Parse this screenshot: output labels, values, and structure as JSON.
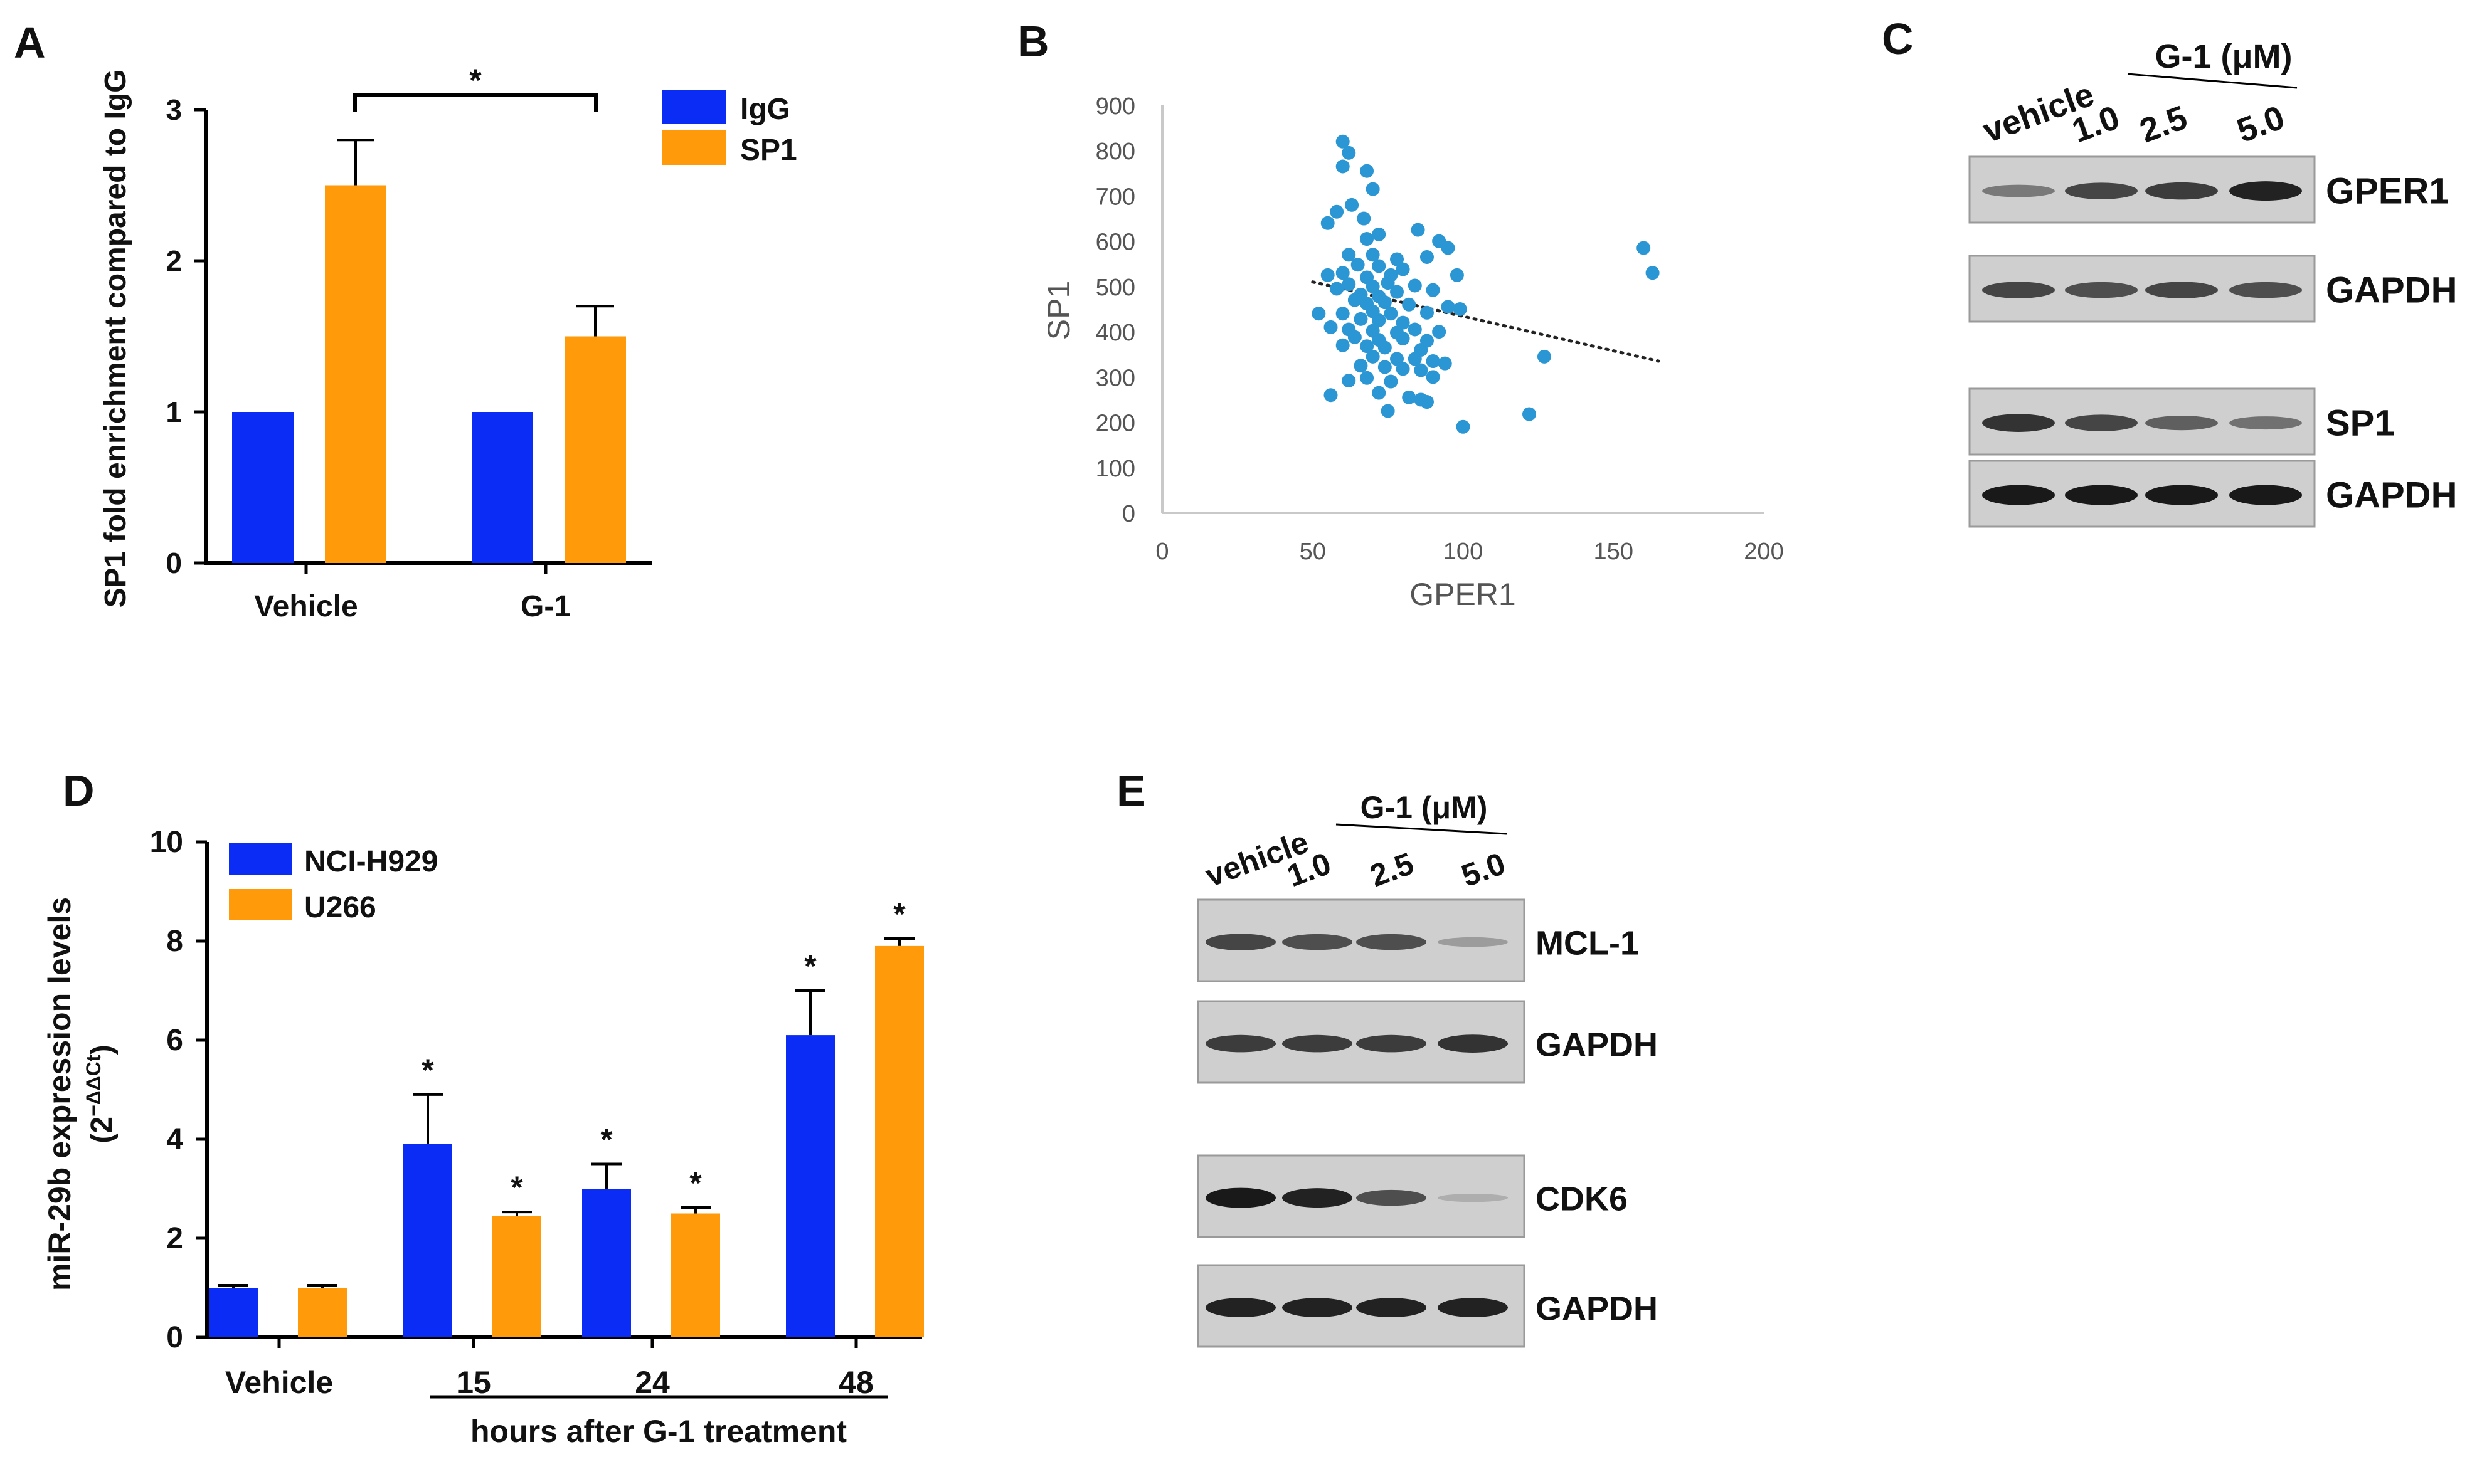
{
  "colors": {
    "blue": "#0a2cf4",
    "orange": "#ff9a0a",
    "scatter": "#2a96d4",
    "axis": "#000000",
    "scatter_axis": "#c9c9c9",
    "panel_labels": "#000000"
  },
  "panels": {
    "a": "A",
    "b": "B",
    "c": "C",
    "d": "D",
    "e": "E"
  },
  "chart_data": [
    {
      "panel": "A",
      "type": "bar",
      "categories": [
        "Vehicle",
        "G-1"
      ],
      "series": [
        {
          "name": "IgG",
          "values": [
            1,
            1
          ],
          "errors": [
            0,
            0
          ]
        },
        {
          "name": "SP1",
          "values": [
            2.5,
            1.5
          ],
          "errors": [
            0.3,
            0.2
          ]
        }
      ],
      "ylabel": "SP1 fold enrichment compared to IgG",
      "ylim": [
        0,
        3
      ],
      "yticks": [
        "0",
        "1",
        "2",
        "3"
      ],
      "significance": {
        "label": "*",
        "between": [
          "Vehicle SP1",
          "G-1 SP1"
        ]
      },
      "legend": "top-right"
    },
    {
      "panel": "B",
      "type": "scatter",
      "xlabel": "GPER1",
      "ylabel": "SP1",
      "xlim": [
        0,
        200
      ],
      "ylim": [
        0,
        900
      ],
      "xticks": [
        "0",
        "50",
        "100",
        "150",
        "200"
      ],
      "yticks": [
        "0",
        "100",
        "200",
        "300",
        "400",
        "500",
        "600",
        "700",
        "800",
        "900"
      ],
      "trendline": {
        "style": "dotted",
        "x": [
          50,
          165
        ],
        "y": [
          510,
          335
        ]
      },
      "points": [
        [
          60,
          820
        ],
        [
          62,
          795
        ],
        [
          60,
          765
        ],
        [
          68,
          755
        ],
        [
          70,
          715
        ],
        [
          58,
          665
        ],
        [
          63,
          680
        ],
        [
          67,
          650
        ],
        [
          55,
          640
        ],
        [
          72,
          615
        ],
        [
          68,
          605
        ],
        [
          85,
          625
        ],
        [
          92,
          600
        ],
        [
          95,
          585
        ],
        [
          62,
          570
        ],
        [
          70,
          570
        ],
        [
          78,
          560
        ],
        [
          88,
          565
        ],
        [
          65,
          548
        ],
        [
          72,
          545
        ],
        [
          80,
          538
        ],
        [
          55,
          525
        ],
        [
          60,
          530
        ],
        [
          68,
          520
        ],
        [
          76,
          525
        ],
        [
          98,
          525
        ],
        [
          62,
          505
        ],
        [
          70,
          500
        ],
        [
          75,
          508
        ],
        [
          84,
          502
        ],
        [
          58,
          495
        ],
        [
          66,
          482
        ],
        [
          72,
          478
        ],
        [
          78,
          488
        ],
        [
          90,
          492
        ],
        [
          64,
          470
        ],
        [
          68,
          462
        ],
        [
          74,
          465
        ],
        [
          82,
          460
        ],
        [
          95,
          455
        ],
        [
          99,
          450
        ],
        [
          52,
          440
        ],
        [
          60,
          440
        ],
        [
          70,
          445
        ],
        [
          76,
          440
        ],
        [
          88,
          442
        ],
        [
          66,
          428
        ],
        [
          72,
          425
        ],
        [
          80,
          420
        ],
        [
          56,
          410
        ],
        [
          62,
          405
        ],
        [
          70,
          402
        ],
        [
          78,
          398
        ],
        [
          84,
          405
        ],
        [
          92,
          400
        ],
        [
          64,
          388
        ],
        [
          72,
          382
        ],
        [
          80,
          385
        ],
        [
          88,
          380
        ],
        [
          60,
          370
        ],
        [
          68,
          368
        ],
        [
          74,
          365
        ],
        [
          86,
          360
        ],
        [
          70,
          345
        ],
        [
          78,
          340
        ],
        [
          84,
          340
        ],
        [
          90,
          335
        ],
        [
          94,
          330
        ],
        [
          66,
          325
        ],
        [
          74,
          322
        ],
        [
          80,
          318
        ],
        [
          86,
          315
        ],
        [
          90,
          300
        ],
        [
          68,
          298
        ],
        [
          62,
          292
        ],
        [
          76,
          290
        ],
        [
          56,
          260
        ],
        [
          72,
          265
        ],
        [
          82,
          255
        ],
        [
          86,
          250
        ],
        [
          88,
          245
        ],
        [
          75,
          225
        ],
        [
          100,
          190
        ],
        [
          122,
          218
        ],
        [
          127,
          345
        ],
        [
          160,
          585
        ],
        [
          163,
          530
        ]
      ]
    },
    {
      "panel": "C",
      "type": "western_blot",
      "header_group": "G-1 (μM)",
      "lane_labels": [
        "vehicle",
        "1.0",
        "2.5",
        "5.0"
      ],
      "blots": [
        {
          "label": "GPER1",
          "intensities": [
            0.45,
            0.75,
            0.8,
            0.95
          ]
        },
        {
          "label": "GAPDH",
          "intensities": [
            0.75,
            0.7,
            0.75,
            0.7
          ]
        },
        {
          "label": "SP1",
          "intensities": [
            0.85,
            0.75,
            0.6,
            0.5
          ]
        },
        {
          "label": "GAPDH",
          "intensities": [
            1.0,
            1.0,
            1.0,
            1.0
          ]
        }
      ]
    },
    {
      "panel": "D",
      "type": "bar",
      "categories": [
        "Vehicle",
        "15",
        "24",
        "48"
      ],
      "series": [
        {
          "name": "NCI-H929",
          "values": [
            1.0,
            3.9,
            3.0,
            6.1
          ],
          "errors": [
            0.05,
            1.0,
            0.5,
            0.9
          ]
        },
        {
          "name": "U266",
          "values": [
            1.0,
            2.45,
            2.5,
            7.9
          ],
          "errors": [
            0.05,
            0.08,
            0.12,
            0.15
          ]
        }
      ],
      "significance_marks": [
        {
          "category": "15",
          "series": "NCI-H929",
          "label": "*"
        },
        {
          "category": "15",
          "series": "U266",
          "label": "*"
        },
        {
          "category": "24",
          "series": "NCI-H929",
          "label": "*"
        },
        {
          "category": "24",
          "series": "U266",
          "label": "*"
        },
        {
          "category": "48",
          "series": "NCI-H929",
          "label": "*"
        },
        {
          "category": "48",
          "series": "U266",
          "label": "*"
        }
      ],
      "ylabel": "miR-29b expression levels",
      "ylabel_sub": "(2",
      "ylabel_exp": "−ΔΔCt",
      "ylabel_close": ")",
      "xgroup_label": "hours after G-1 treatment",
      "ylim": [
        0,
        10
      ],
      "yticks": [
        "0",
        "2",
        "4",
        "6",
        "8",
        "10"
      ],
      "legend": "top-left"
    },
    {
      "panel": "E",
      "type": "western_blot",
      "header_group": "G-1 (μM)",
      "lane_labels": [
        "vehicle",
        "1.0",
        "2.5",
        "5.0"
      ],
      "blots": [
        {
          "label": "MCL-1",
          "intensities": [
            0.75,
            0.7,
            0.7,
            0.25
          ]
        },
        {
          "label": "GAPDH",
          "intensities": [
            0.8,
            0.8,
            0.8,
            0.85
          ]
        },
        {
          "label": "CDK6",
          "intensities": [
            1.0,
            0.95,
            0.7,
            0.15
          ]
        },
        {
          "label": "GAPDH",
          "intensities": [
            0.95,
            0.95,
            0.95,
            0.95
          ]
        }
      ]
    }
  ]
}
